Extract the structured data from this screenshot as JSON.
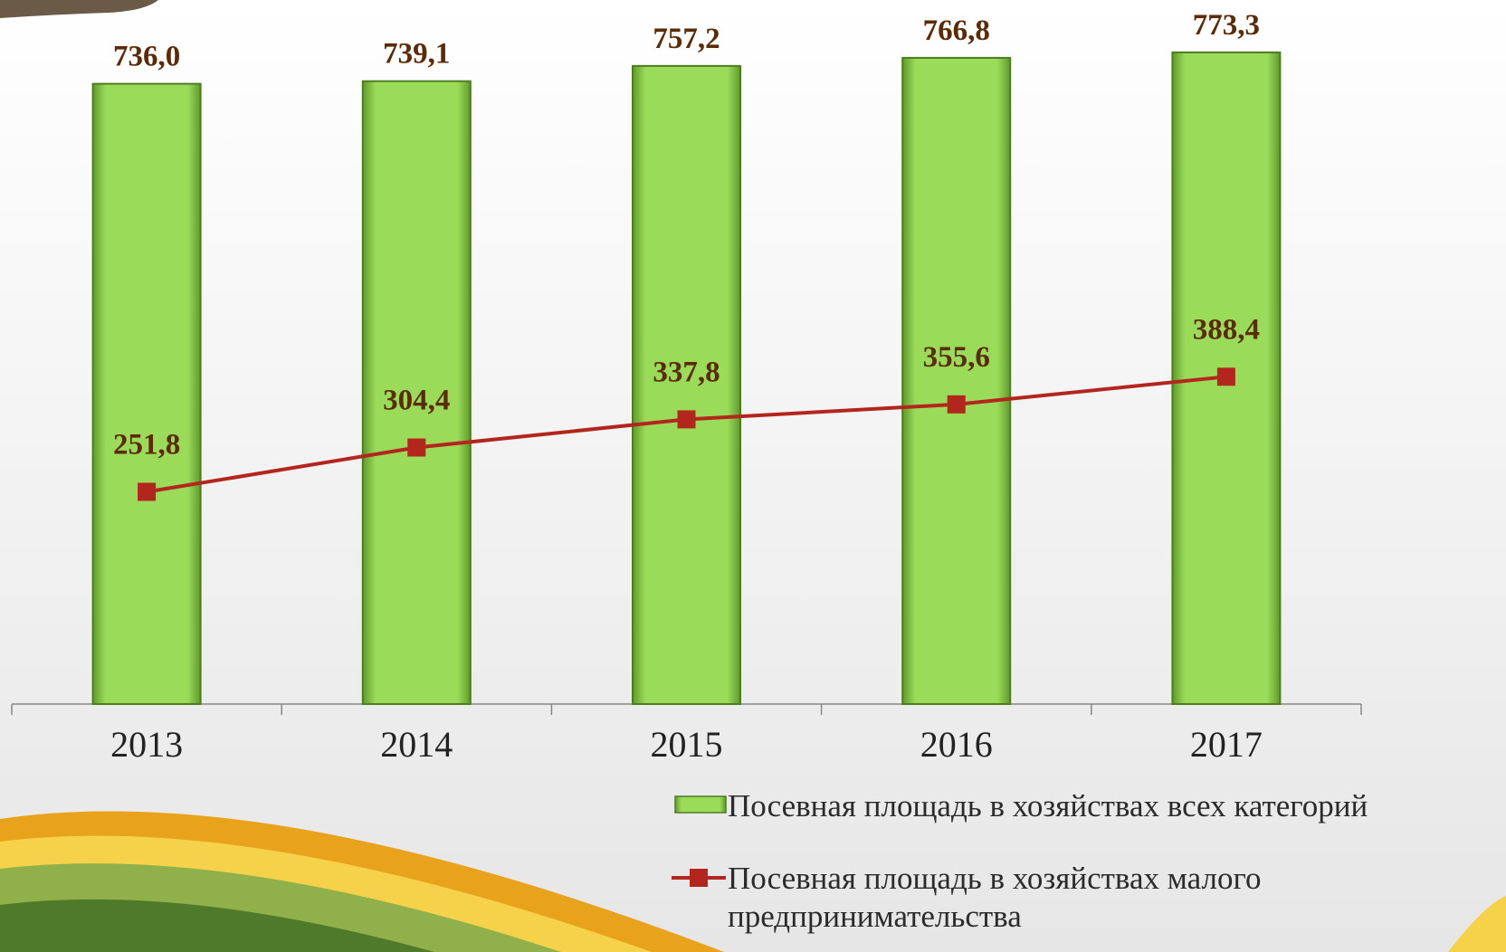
{
  "chart_data": {
    "type": "combo",
    "categories": [
      "2013",
      "2014",
      "2015",
      "2016",
      "2017"
    ],
    "ylim": [
      0,
      800
    ],
    "series": [
      {
        "name": "Посевная площадь в хозяйствах всех категорий",
        "type": "bar",
        "color": "#92d050",
        "values": [
          736.0,
          739.1,
          757.2,
          766.8,
          773.3
        ],
        "value_labels": [
          "736,0",
          "739,1",
          "757,2",
          "766,8",
          "773,3"
        ]
      },
      {
        "name": "Посевная площадь в хозяйствах малого предпринимательства",
        "type": "line",
        "color": "#b3261e",
        "values": [
          251.8,
          304.4,
          337.8,
          355.6,
          388.4
        ],
        "value_labels": [
          "251,8",
          "304,4",
          "337,8",
          "355,6",
          "388,4"
        ]
      }
    ]
  }
}
